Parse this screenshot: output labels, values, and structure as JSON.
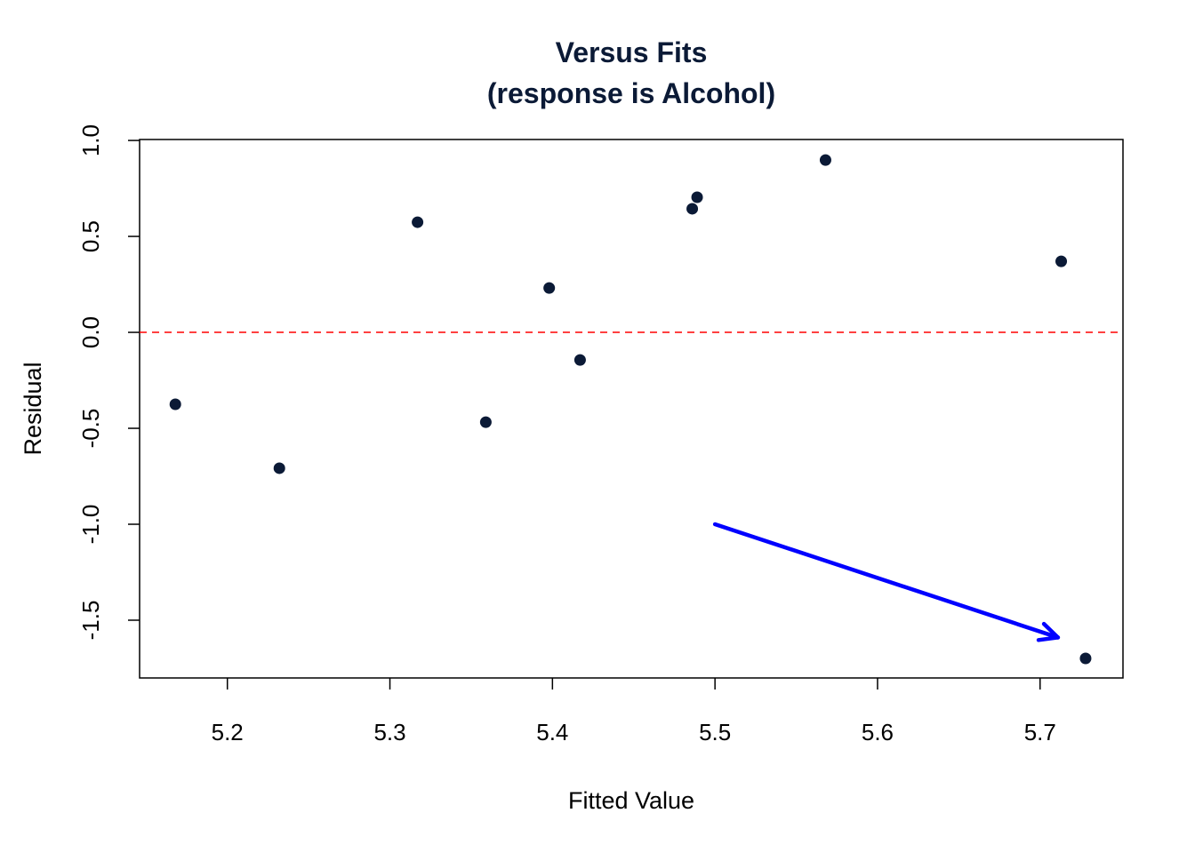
{
  "chart_data": {
    "type": "scatter",
    "title": "Versus Fits",
    "subtitle": "(response is Alcohol)",
    "xlabel": "Fitted Value",
    "ylabel": "Residual",
    "xlim": [
      5.146,
      5.751
    ],
    "ylim": [
      -1.801,
      1.005
    ],
    "xticks": [
      5.2,
      5.3,
      5.4,
      5.5,
      5.6,
      5.7
    ],
    "xtick_labels": [
      "5.2",
      "5.3",
      "5.4",
      "5.5",
      "5.6",
      "5.7"
    ],
    "yticks": [
      1.0,
      0.5,
      0.0,
      -0.5,
      -1.0,
      -1.5
    ],
    "ytick_labels": [
      "1.0",
      "0.5",
      "0.0",
      "-0.5",
      "-1.0",
      "-1.5"
    ],
    "grid": false,
    "points": [
      {
        "x": 5.168,
        "y": -0.375
      },
      {
        "x": 5.232,
        "y": -0.708
      },
      {
        "x": 5.317,
        "y": 0.574
      },
      {
        "x": 5.359,
        "y": -0.468
      },
      {
        "x": 5.398,
        "y": 0.231
      },
      {
        "x": 5.417,
        "y": -0.144
      },
      {
        "x": 5.486,
        "y": 0.644
      },
      {
        "x": 5.489,
        "y": 0.704
      },
      {
        "x": 5.568,
        "y": 0.898
      },
      {
        "x": 5.713,
        "y": 0.37
      },
      {
        "x": 5.728,
        "y": -1.699
      }
    ],
    "reference_line": {
      "y": 0.0,
      "style": "dashed",
      "color": "#ff0000"
    },
    "annotation_arrow": {
      "from": [
        5.5,
        -1.0
      ],
      "to": [
        5.711,
        -1.59
      ],
      "color": "#0000ff"
    },
    "point_color": "#0b1a36",
    "title_color": "#0b1a36"
  }
}
